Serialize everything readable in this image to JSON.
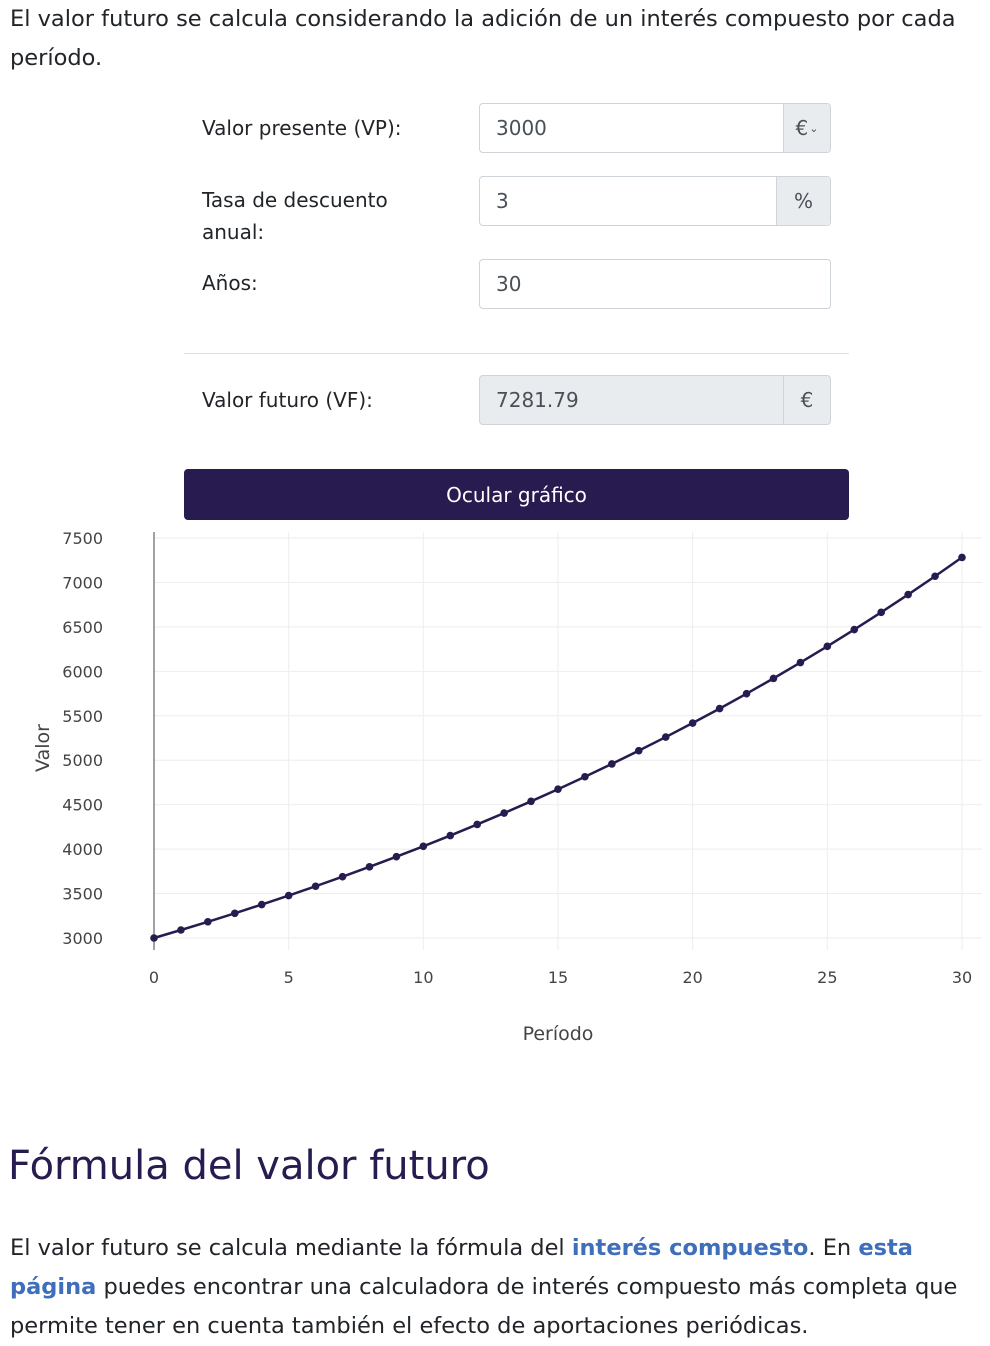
{
  "intro": "El valor futuro se calcula considerando la adición de un interés compuesto por cada período.",
  "form": {
    "vp_label": "Valor presente (VP):",
    "vp_value": "3000",
    "currency": "€",
    "rate_label": "Tasa de descuento anual:",
    "rate_value": "3",
    "rate_unit": "%",
    "years_label": "Años:",
    "years_value": "30",
    "fv_label": "Valor futuro (VF):",
    "fv_value": "7281.79",
    "fv_currency": "€"
  },
  "button": {
    "label": "Ocular gráfico"
  },
  "chart_data": {
    "type": "line",
    "xlabel": "Período",
    "ylabel": "Valor",
    "xlim": [
      0,
      30
    ],
    "ylim": [
      3000,
      7500
    ],
    "xticks": [
      0,
      5,
      10,
      15,
      20,
      25,
      30
    ],
    "yticks": [
      3000,
      3500,
      4000,
      4500,
      5000,
      5500,
      6000,
      6500,
      7000,
      7500
    ],
    "grid": true,
    "color": "#271b4f",
    "x": [
      0,
      1,
      2,
      3,
      4,
      5,
      6,
      7,
      8,
      9,
      10,
      11,
      12,
      13,
      14,
      15,
      16,
      17,
      18,
      19,
      20,
      21,
      22,
      23,
      24,
      25,
      26,
      27,
      28,
      29,
      30
    ],
    "y": [
      3000,
      3090,
      3182.7,
      3278.18,
      3376.53,
      3477.82,
      3582.16,
      3689.62,
      3800.31,
      3914.32,
      4031.75,
      4152.7,
      4277.28,
      4405.6,
      4537.77,
      4673.9,
      4814.12,
      4958.54,
      5107.3,
      5260.51,
      5418.33,
      5580.88,
      5748.31,
      5920.76,
      6098.38,
      6281.33,
      6469.77,
      6663.86,
      6863.78,
      7069.69,
      7281.79
    ]
  },
  "formula": {
    "heading": "Fórmula del valor futuro",
    "text1": "El valor futuro se calcula mediante la fórmula del ",
    "link1": "interés compuesto",
    "text2": ". En ",
    "link2": "esta página",
    "text3": " puedes encontrar una calculadora de interés compuesto más completa que permite tener en cuenta también el efecto de aportaciones periódicas."
  }
}
